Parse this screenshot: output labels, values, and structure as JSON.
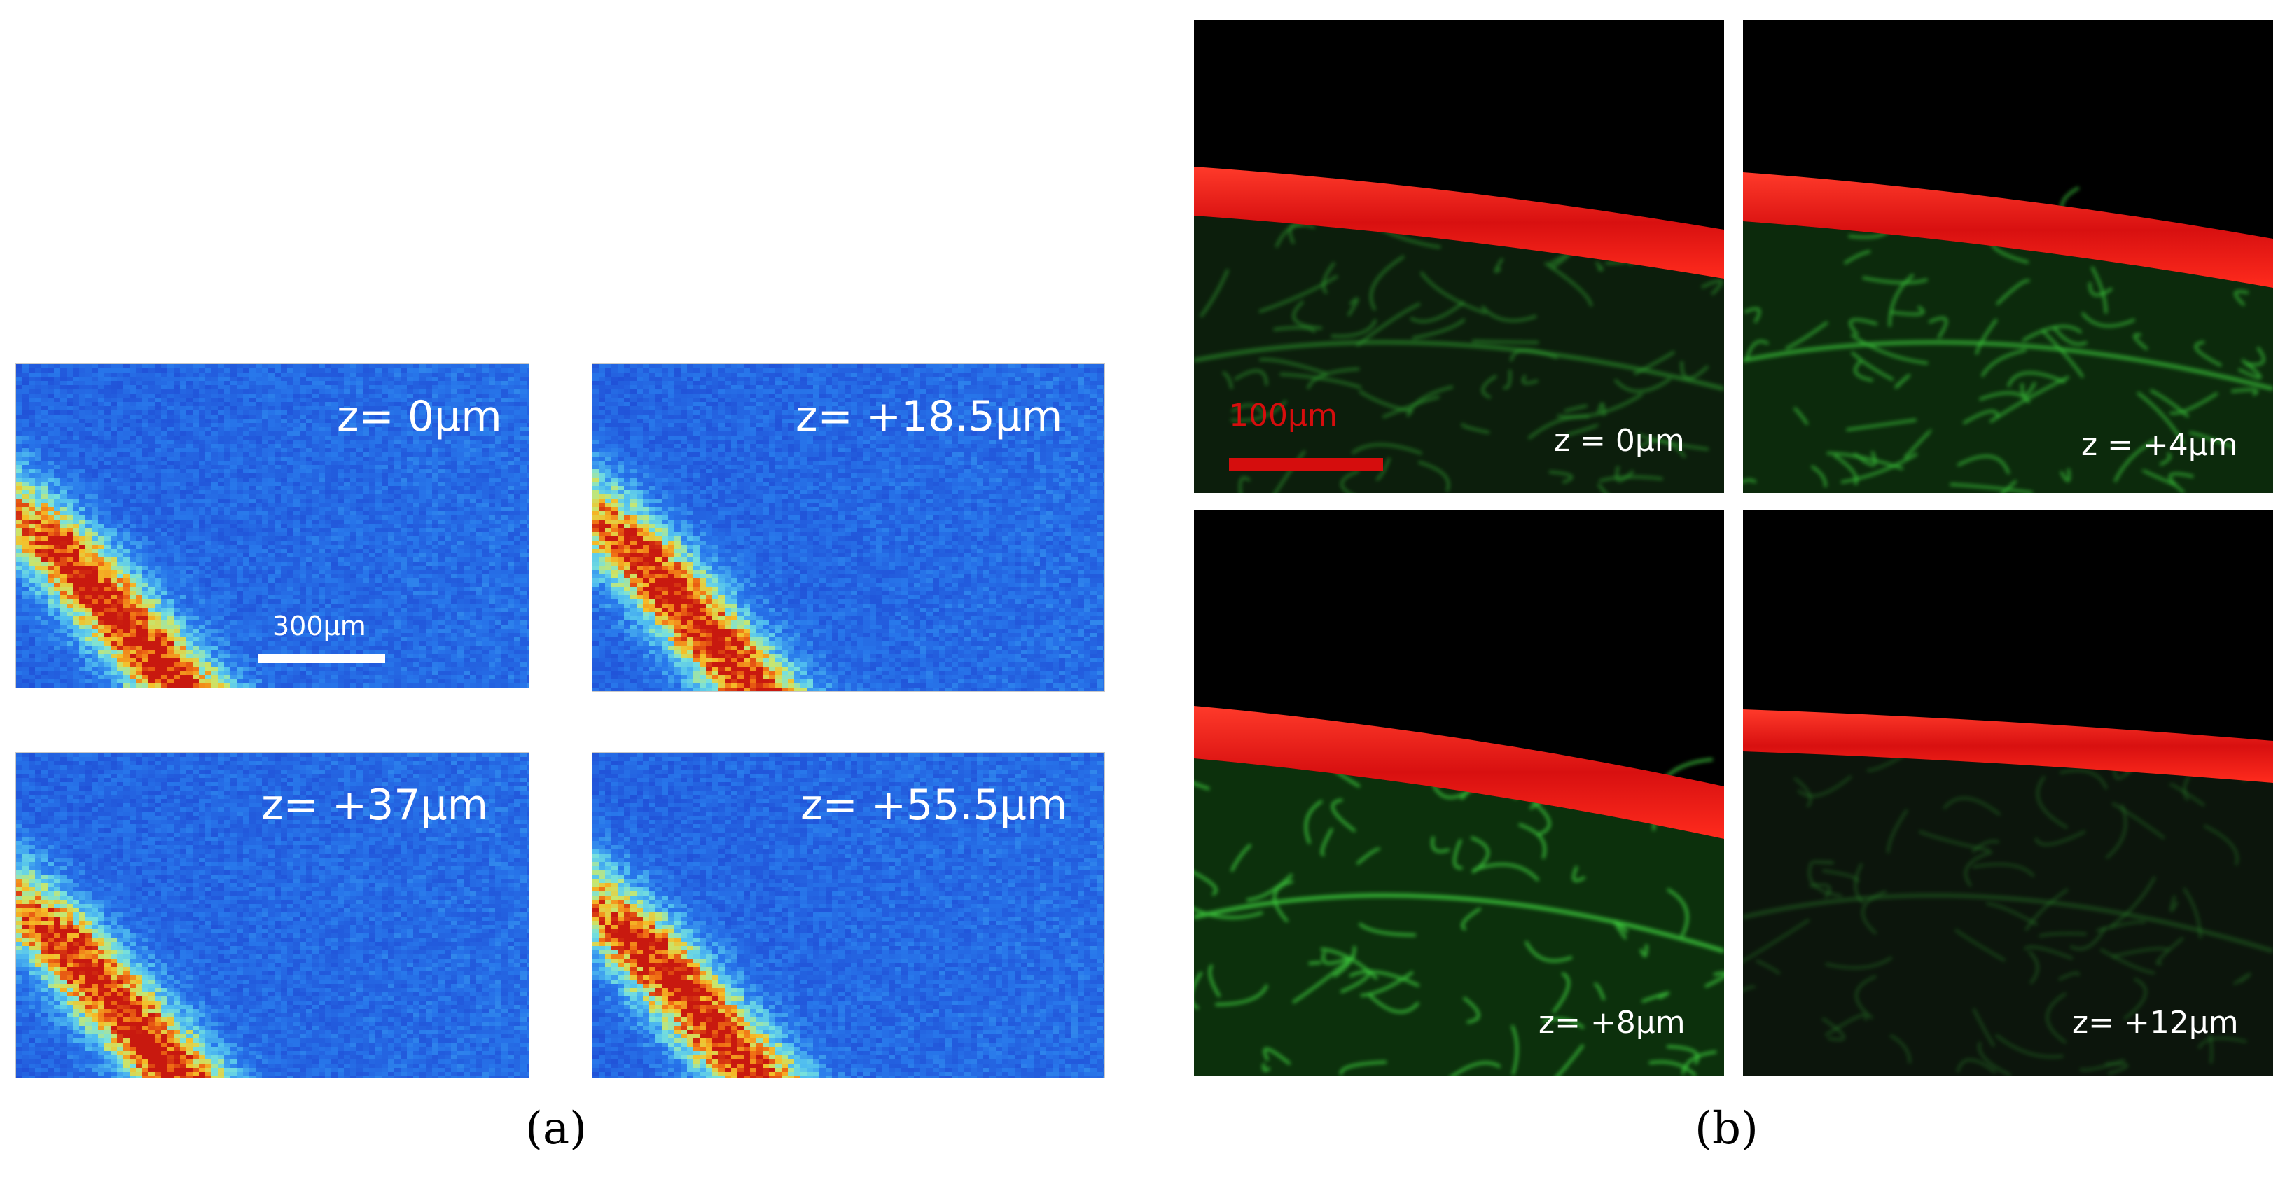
{
  "panel_a": {
    "caption": "(a)",
    "scale_label": "300µm",
    "images": [
      {
        "z_label": "z= 0µm"
      },
      {
        "z_label": "z= +18.5µm"
      },
      {
        "z_label": "z= +37µm"
      },
      {
        "z_label": "z= +55.5µm"
      }
    ],
    "colors": {
      "background": "#2f6fe0",
      "peak": "#d8240f"
    }
  },
  "panel_b": {
    "caption": "(b)",
    "scale_label": "100µm",
    "images": [
      {
        "z_label": "z = 0µm"
      },
      {
        "z_label": "z = +4µm"
      },
      {
        "z_label": "z= +8µm"
      },
      {
        "z_label": "z= +12µm"
      }
    ],
    "colors": {
      "band": "#e01010",
      "network": "#2fb02f",
      "scale_bar": "#d50d0d"
    }
  }
}
